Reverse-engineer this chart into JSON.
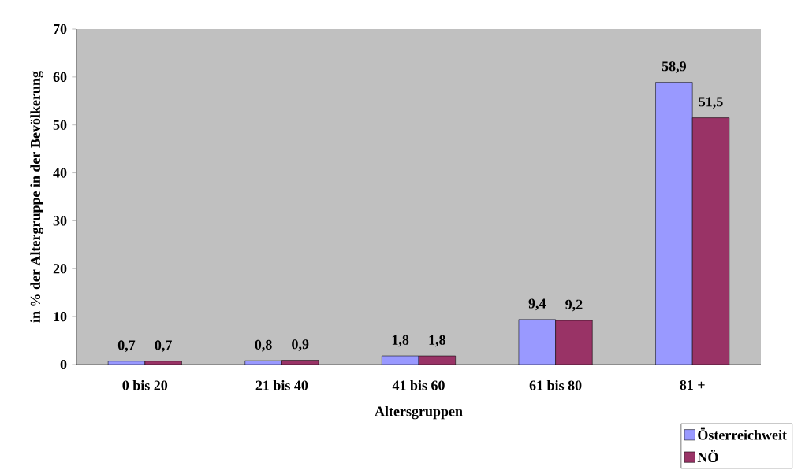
{
  "chart_data": {
    "type": "bar",
    "xlabel": "Altersgruppen",
    "ylabel": "in % der Altergruppe in der Bevölkerung",
    "categories": [
      "0 bis 20",
      "21 bis 40",
      "41 bis 60",
      "61 bis 80",
      "81 +"
    ],
    "series": [
      {
        "name": "Österreichweit",
        "color": "#9999ff",
        "values": [
          0.7,
          0.8,
          1.8,
          9.4,
          58.9
        ],
        "value_labels": [
          "0,7",
          "0,8",
          "1,8",
          "9,4",
          "58,9"
        ]
      },
      {
        "name": "NÖ",
        "color": "#993366",
        "values": [
          0.7,
          0.9,
          1.8,
          9.2,
          51.5
        ],
        "value_labels": [
          "0,7",
          "0,9",
          "1,8",
          "9,2",
          "51,5"
        ]
      }
    ],
    "ylim": [
      0,
      70
    ],
    "yticks": [
      0,
      10,
      20,
      30,
      40,
      50,
      60,
      70
    ],
    "legend": "bottom right",
    "grid": false
  }
}
